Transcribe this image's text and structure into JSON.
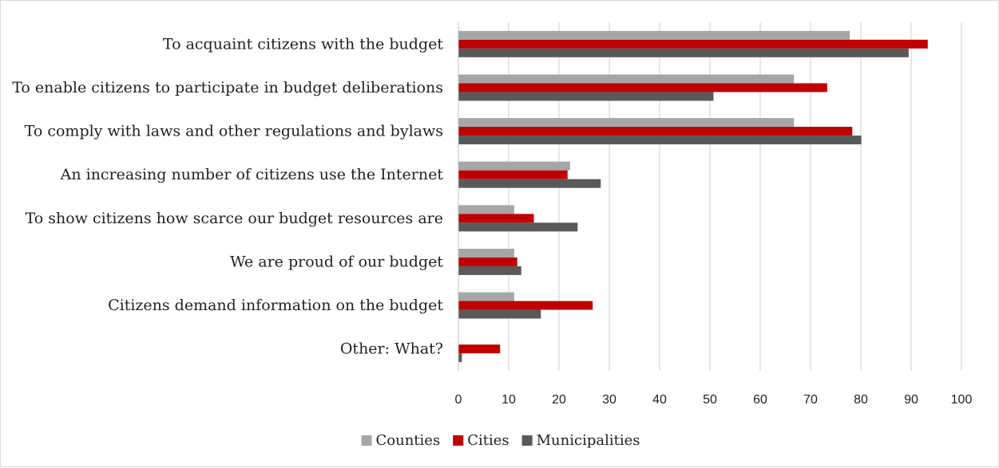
{
  "colors": {
    "Counties": "#a6a6a6",
    "Cities": "#c00000",
    "Municipalities": "#595959",
    "grid": "#cfcfcf",
    "axis": "#bfbfbf"
  },
  "chart_data": {
    "type": "bar",
    "orientation": "horizontal",
    "categories": [
      "To acquaint citizens  with the budget",
      "To enable citizens to participate in budget deliberations",
      "To comply with laws and other regulations and bylaws",
      "An increasing number of citizens use the Internet",
      "To show citizens how scarce our budget resources are",
      "We are proud of our budget",
      "Citizens demand information on the budget",
      "Other: What?"
    ],
    "series": [
      {
        "name": "Counties",
        "values": [
          77.8,
          66.7,
          66.7,
          22.2,
          11.1,
          11.1,
          11.1,
          0
        ]
      },
      {
        "name": "Cities",
        "values": [
          93.3,
          73.3,
          78.3,
          21.7,
          15.0,
          11.7,
          26.7,
          8.3
        ]
      },
      {
        "name": "Municipalities",
        "values": [
          89.5,
          50.7,
          80.1,
          28.3,
          23.7,
          12.5,
          16.4,
          0.7
        ]
      }
    ],
    "xlim": [
      0,
      100
    ],
    "xticks": [
      "0",
      "10",
      "20",
      "30",
      "40",
      "50",
      "60",
      "70",
      "80",
      "90",
      "100"
    ],
    "grid": true,
    "legend_position": "bottom",
    "title": "",
    "xlabel": "",
    "ylabel": ""
  }
}
